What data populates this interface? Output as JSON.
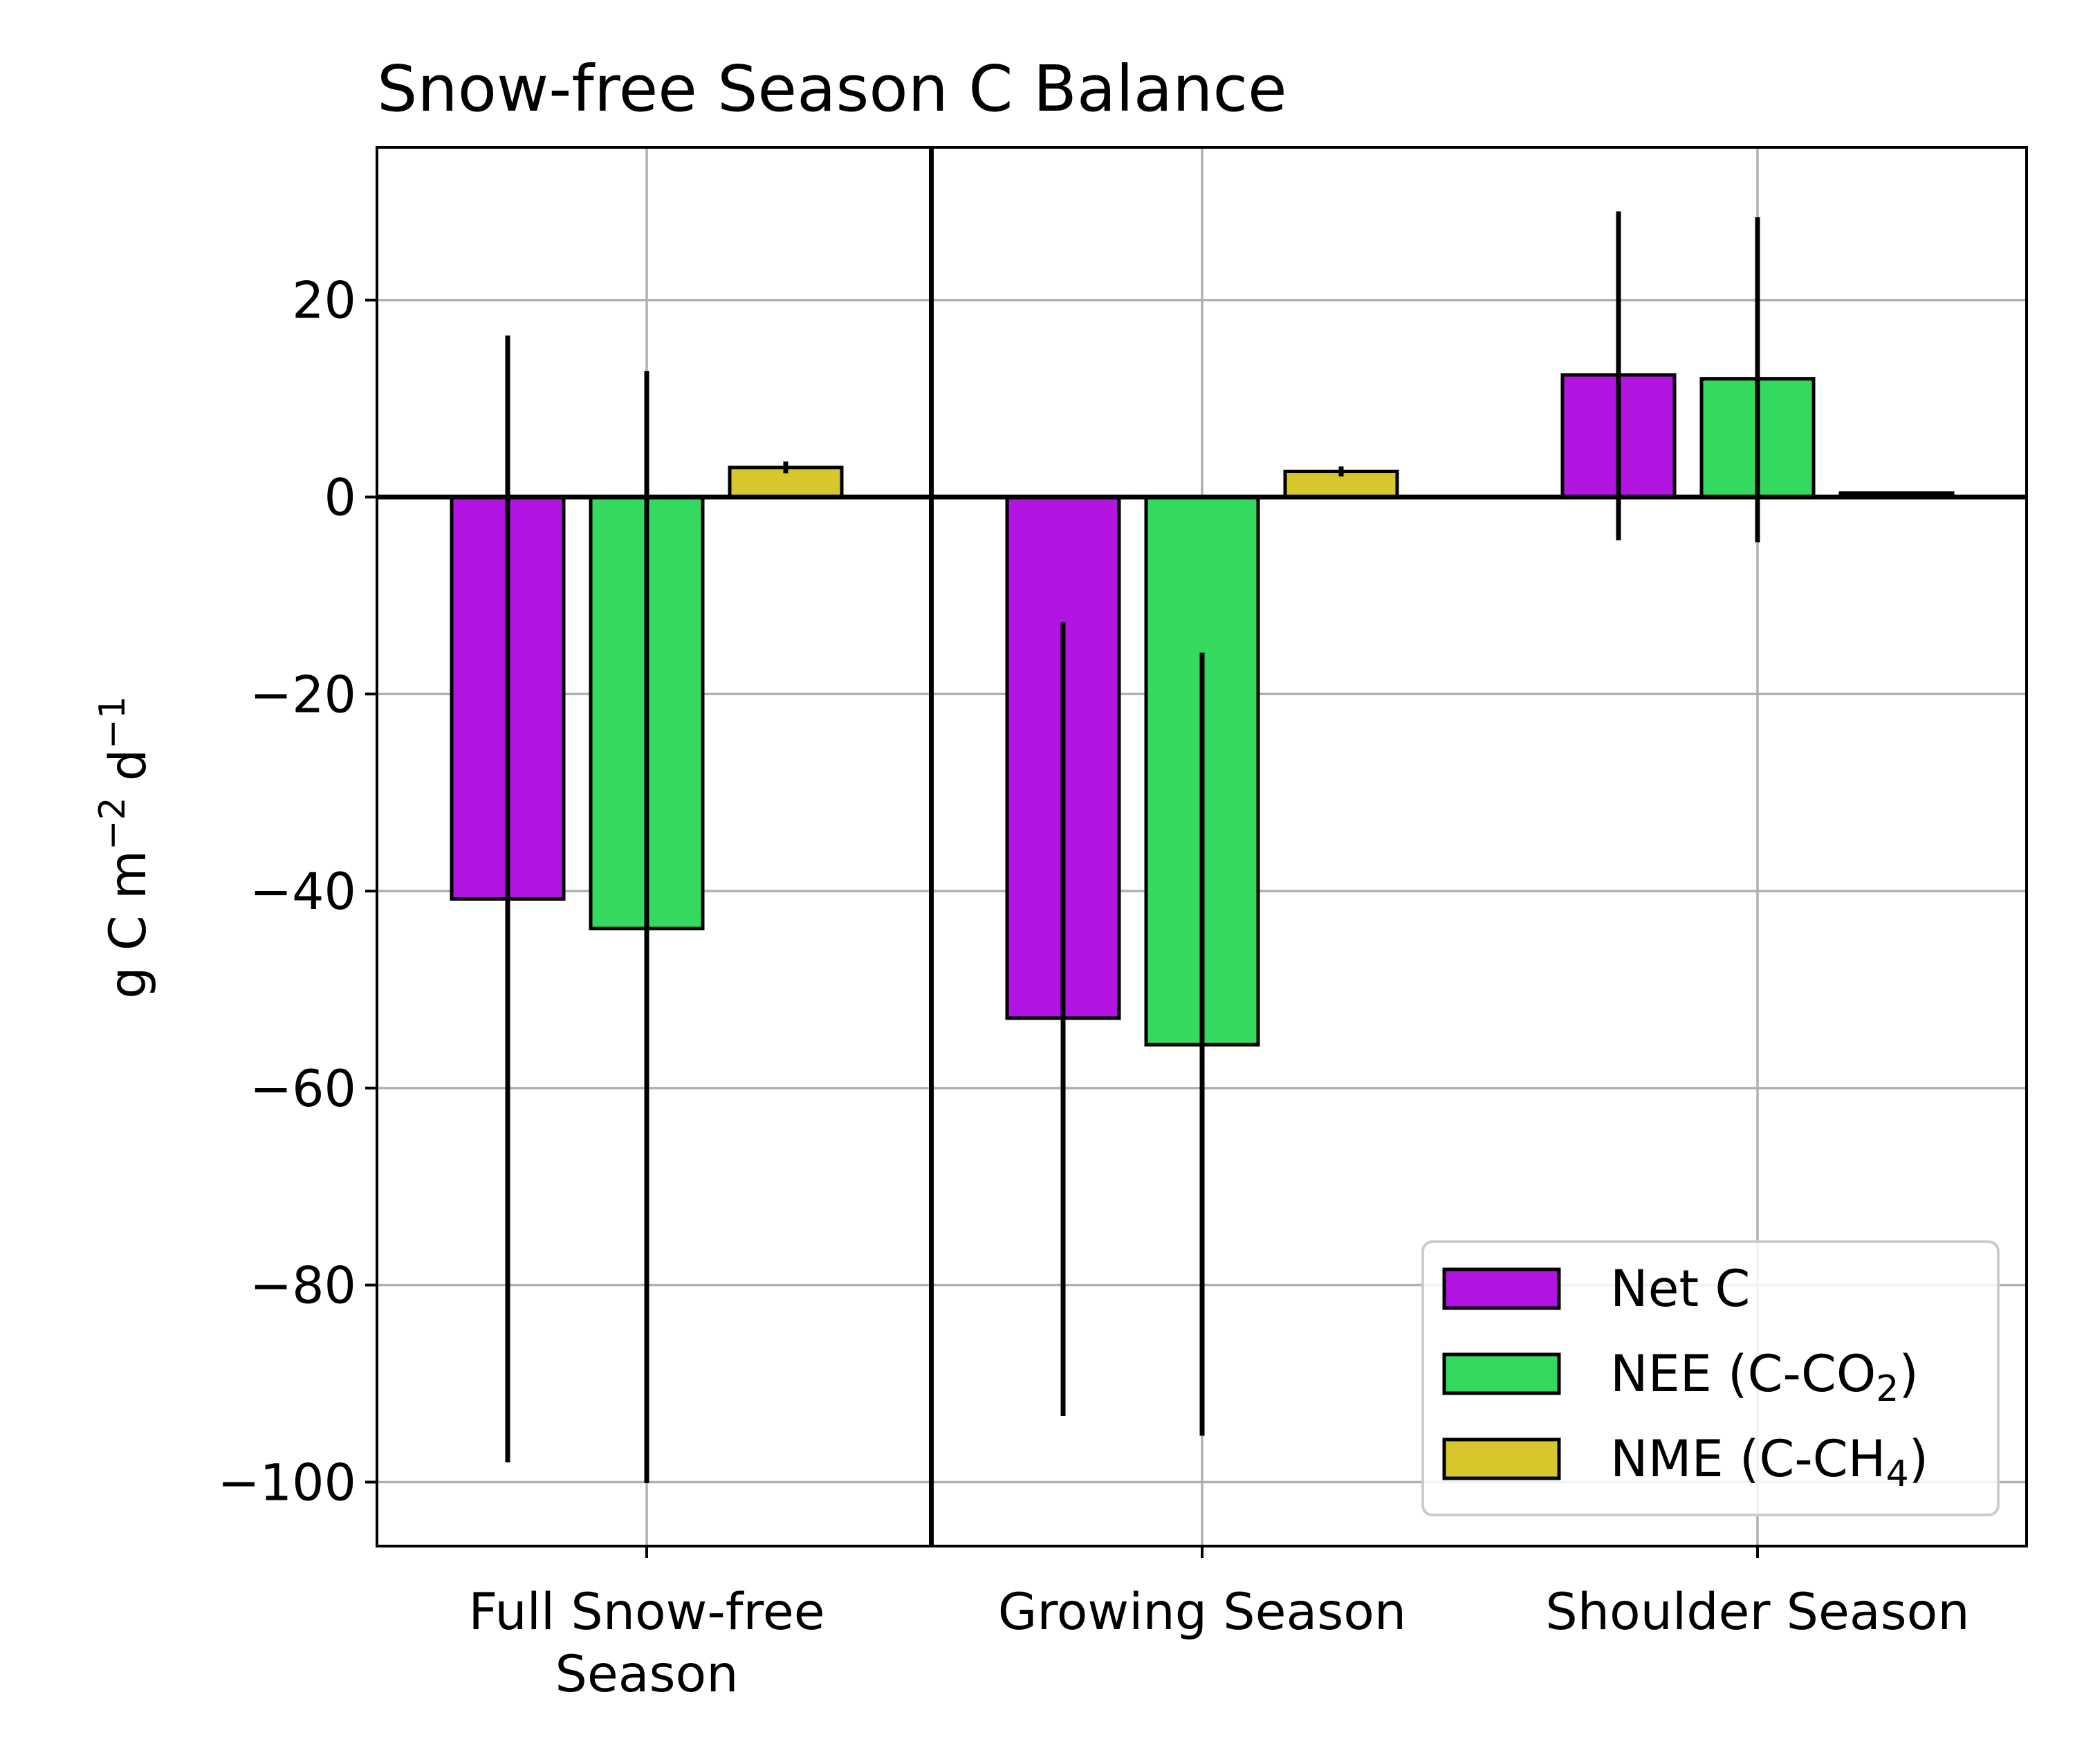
{
  "chart_data": {
    "type": "bar",
    "title": "Snow-free Season C Balance",
    "xlabel": "",
    "ylabel_parts": {
      "base": "g C m",
      "exp1": "−2",
      "mid": " d",
      "exp2": "−1"
    },
    "categories": [
      [
        "Full Snow-free",
        "Season"
      ],
      [
        "Growing Season"
      ],
      [
        "Shoulder Season"
      ]
    ],
    "ylim": [
      -106.5,
      35.5
    ],
    "yticks": [
      20,
      0,
      -20,
      -40,
      -60,
      -80,
      -100
    ],
    "ytick_labels": [
      "20",
      "0",
      "−20",
      "−40",
      "−60",
      "−80",
      "−100"
    ],
    "grid": true,
    "legend_position": "lower-right",
    "series": [
      {
        "name": "Net C",
        "label_main": "Net C",
        "label_sub": "",
        "label_tail": "",
        "color": "#b215e2",
        "values": [
          -40.8,
          -52.9,
          12.4
        ],
        "err_low": [
          -98.0,
          -93.3,
          -4.4
        ],
        "err_high": [
          16.4,
          -12.7,
          29.0
        ]
      },
      {
        "name": "NEE (C-CO2)",
        "label_main": "NEE (C-CO",
        "label_sub": "2",
        "label_tail": ")",
        "color": "#34d960",
        "values": [
          -43.8,
          -55.6,
          12.0
        ],
        "err_low": [
          -100.1,
          -95.3,
          -4.6
        ],
        "err_high": [
          12.8,
          -15.8,
          28.4
        ]
      },
      {
        "name": "NME (C-CH4)",
        "label_main": "NME (C-CH",
        "label_sub": "4",
        "label_tail": ")",
        "color": "#d8c72c",
        "values": [
          3.0,
          2.6,
          0.4
        ],
        "err_low": [
          2.4,
          2.1,
          0.3
        ],
        "err_high": [
          3.6,
          3.1,
          0.5
        ]
      }
    ]
  }
}
